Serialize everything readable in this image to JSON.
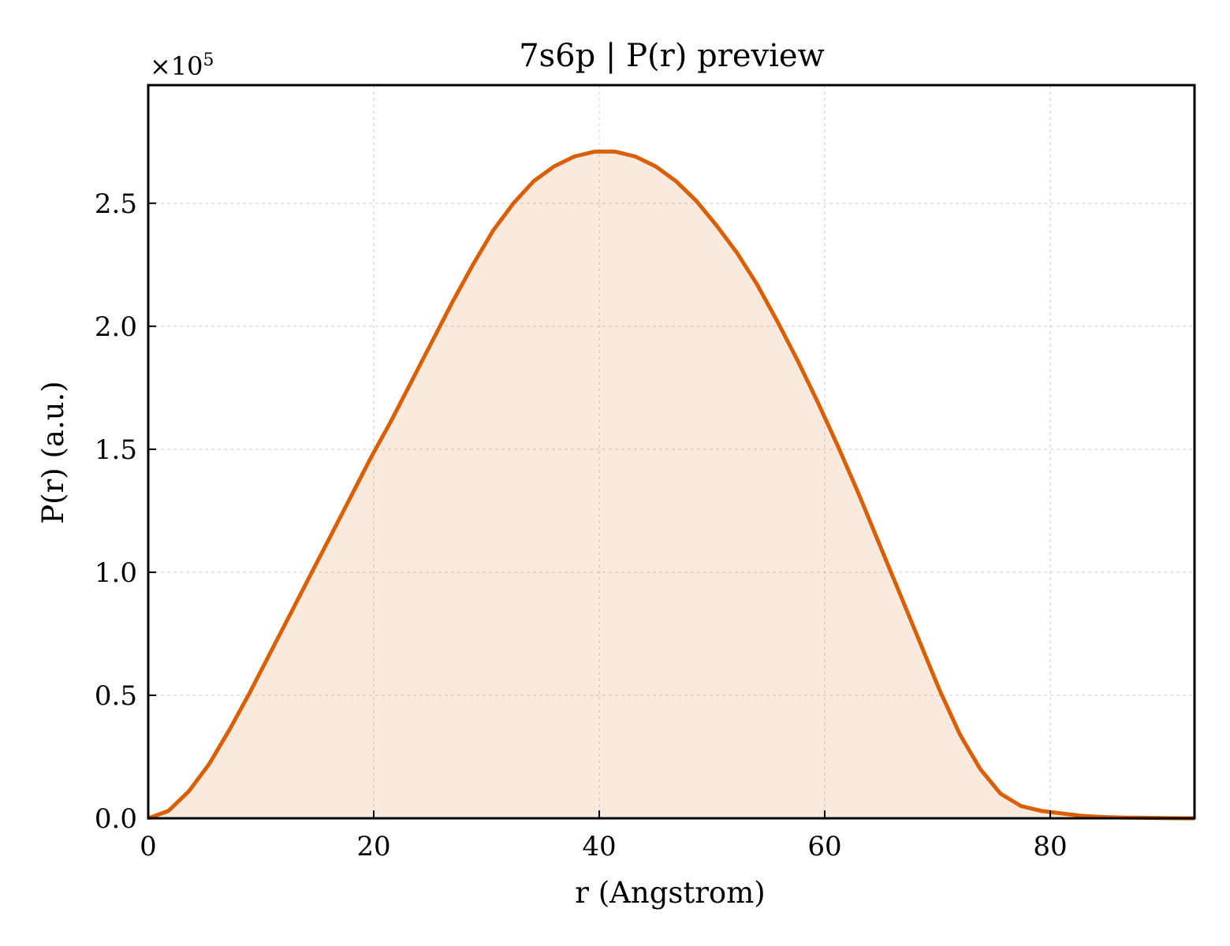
{
  "colors": {
    "line": "#d95f02",
    "fill": "#d95f02",
    "axes": "#000000",
    "grid": "#b0b0b0",
    "background": "#ffffff"
  },
  "chart_data": {
    "type": "area",
    "title": "7s6p | P(r) preview",
    "xlabel": "r (Angstrom)",
    "ylabel": "P(r) (a.u.)",
    "y_offset_label": "×10^5",
    "y_scale_factor": 100000,
    "xlim": [
      0,
      92.8
    ],
    "ylim": [
      0,
      2.98
    ],
    "xticks": [
      0,
      20,
      40,
      60,
      80
    ],
    "xtick_labels": [
      "0",
      "20",
      "40",
      "60",
      "80"
    ],
    "yticks": [
      0,
      0.5,
      1.0,
      1.5,
      2.0,
      2.5
    ],
    "ytick_labels": [
      "0.0",
      "0.5",
      "1.0",
      "1.5",
      "2.0",
      "2.5"
    ],
    "grid": true,
    "legend": false,
    "series": [
      {
        "x": [
          0,
          1.8,
          3.6,
          5.4,
          7.2,
          9.0,
          10.8,
          12.6,
          14.4,
          16.2,
          18.0,
          19.8,
          21.6,
          23.4,
          25.2,
          27.0,
          28.8,
          30.6,
          32.4,
          34.2,
          36.0,
          37.8,
          39.6,
          41.4,
          43.2,
          45.0,
          46.8,
          48.6,
          50.4,
          52.2,
          54.0,
          55.8,
          57.6,
          59.4,
          61.2,
          63.0,
          64.8,
          66.6,
          68.4,
          70.2,
          72.0,
          73.8,
          75.6,
          77.4,
          79.2,
          81.0,
          82.8,
          84.6,
          86.4,
          88.2,
          90.0,
          91.8,
          92.8
        ],
        "values": [
          0.0,
          0.03,
          0.11,
          0.22,
          0.36,
          0.51,
          0.67,
          0.83,
          0.99,
          1.15,
          1.31,
          1.47,
          1.62,
          1.78,
          1.94,
          2.1,
          2.25,
          2.39,
          2.5,
          2.59,
          2.65,
          2.69,
          2.71,
          2.71,
          2.69,
          2.65,
          2.59,
          2.51,
          2.41,
          2.3,
          2.17,
          2.02,
          1.86,
          1.69,
          1.51,
          1.32,
          1.12,
          0.92,
          0.72,
          0.52,
          0.34,
          0.2,
          0.1,
          0.05,
          0.03,
          0.02,
          0.01,
          0.005,
          0.003,
          0.002,
          0.001,
          0.0,
          0.0
        ]
      }
    ]
  }
}
